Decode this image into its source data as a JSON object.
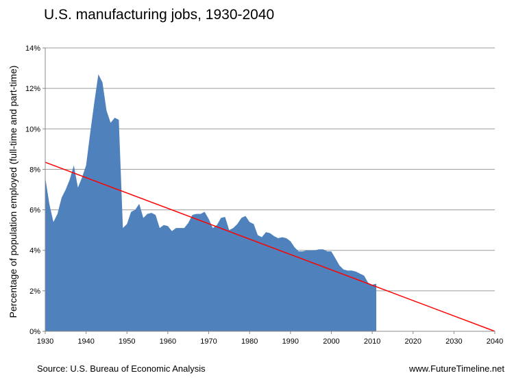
{
  "chart_data": {
    "type": "area",
    "title": "U.S. manufacturing jobs, 1930-2040",
    "xlabel": "",
    "ylabel": "Percentage of population employed (full-time and part-time)",
    "xlim": [
      1930,
      2040
    ],
    "ylim": [
      0,
      14
    ],
    "x_ticks": [
      1930,
      1940,
      1950,
      1960,
      1970,
      1980,
      1990,
      2000,
      2010,
      2020,
      2030,
      2040
    ],
    "y_ticks": [
      0,
      2,
      4,
      6,
      8,
      10,
      12,
      14
    ],
    "y_tick_labels": [
      "0%",
      "2%",
      "4%",
      "6%",
      "8%",
      "10%",
      "12%",
      "14%"
    ],
    "grid": "horizontal",
    "series": [
      {
        "name": "Manufacturing employment",
        "kind": "area",
        "color": "#4f81bd",
        "x": [
          1930,
          1931,
          1932,
          1933,
          1934,
          1935,
          1936,
          1937,
          1938,
          1939,
          1940,
          1941,
          1942,
          1943,
          1944,
          1945,
          1946,
          1947,
          1948,
          1949,
          1950,
          1951,
          1952,
          1953,
          1954,
          1955,
          1956,
          1957,
          1958,
          1959,
          1960,
          1961,
          1962,
          1963,
          1964,
          1965,
          1966,
          1967,
          1968,
          1969,
          1970,
          1971,
          1972,
          1973,
          1974,
          1975,
          1976,
          1977,
          1978,
          1979,
          1980,
          1981,
          1982,
          1983,
          1984,
          1985,
          1986,
          1987,
          1988,
          1989,
          1990,
          1991,
          1992,
          1993,
          1994,
          1995,
          1996,
          1997,
          1998,
          1999,
          2000,
          2001,
          2002,
          2003,
          2004,
          2005,
          2006,
          2007,
          2008,
          2009,
          2010,
          2011
        ],
        "values": [
          7.6,
          6.3,
          5.4,
          5.8,
          6.6,
          7.0,
          7.5,
          8.2,
          7.1,
          7.6,
          8.2,
          9.8,
          11.3,
          12.7,
          12.3,
          10.9,
          10.3,
          10.55,
          10.45,
          5.1,
          5.3,
          5.9,
          6.0,
          6.3,
          5.6,
          5.8,
          5.85,
          5.75,
          5.1,
          5.25,
          5.2,
          4.95,
          5.1,
          5.1,
          5.1,
          5.35,
          5.75,
          5.8,
          5.8,
          5.9,
          5.55,
          5.1,
          5.25,
          5.6,
          5.65,
          5.0,
          5.1,
          5.3,
          5.6,
          5.7,
          5.4,
          5.3,
          4.75,
          4.65,
          4.9,
          4.85,
          4.7,
          4.6,
          4.65,
          4.6,
          4.45,
          4.15,
          3.95,
          3.95,
          4.0,
          4.0,
          4.0,
          4.05,
          4.05,
          3.95,
          3.95,
          3.6,
          3.25,
          3.05,
          3.0,
          3.0,
          2.95,
          2.85,
          2.75,
          2.4,
          2.3,
          2.35
        ]
      },
      {
        "name": "Trend line",
        "kind": "line",
        "color": "#ff0000",
        "x": [
          1930,
          2040
        ],
        "values": [
          8.35,
          0.0
        ]
      }
    ]
  },
  "footer": {
    "source": "Source: U.S. Bureau of Economic Analysis",
    "website": "www.FutureTimeline.net"
  }
}
